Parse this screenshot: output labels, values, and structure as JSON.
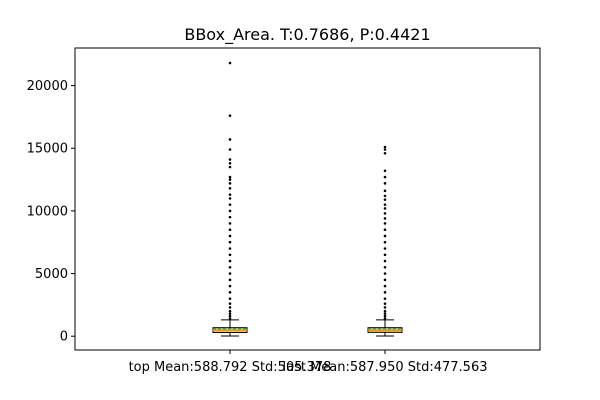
{
  "chart_data": {
    "type": "boxplot",
    "title": "BBox_Area. T:0.7686, P:0.4421",
    "xlabel": "",
    "ylabel": "",
    "ylim": [
      -1100,
      23000
    ],
    "yticks": [
      0,
      5000,
      10000,
      15000,
      20000
    ],
    "ytick_labels": [
      "0",
      "5000",
      "10000",
      "15000",
      "20000"
    ],
    "grid": false,
    "categories": [
      "top Mean:588.792 Std:505.378",
      "last Mean:587.950 Std:477.563"
    ],
    "boxes": [
      {
        "label": "top Mean:588.792 Std:505.378",
        "whisker_low": 20,
        "q1": 300,
        "median": 480,
        "mean": 588.792,
        "q3": 680,
        "whisker_high": 1300,
        "outliers": [
          1400,
          1600,
          1800,
          2000,
          2300,
          2600,
          3000,
          3500,
          4000,
          4500,
          5000,
          5500,
          6000,
          6500,
          7000,
          7500,
          8000,
          8500,
          9000,
          9500,
          10000,
          10500,
          11000,
          11300,
          11800,
          12200,
          12500,
          12700,
          13500,
          13800,
          14100,
          14900,
          15700,
          17600,
          21800
        ]
      },
      {
        "label": "last Mean:587.950 Std:477.563",
        "whisker_low": 20,
        "q1": 310,
        "median": 480,
        "mean": 587.95,
        "q3": 680,
        "whisker_high": 1300,
        "outliers": [
          1400,
          1600,
          1800,
          2000,
          2300,
          2600,
          3000,
          3500,
          4000,
          4500,
          5000,
          5500,
          6000,
          6500,
          7000,
          7500,
          8000,
          8500,
          9000,
          9400,
          9800,
          10200,
          10500,
          10900,
          11200,
          11600,
          12200,
          12700,
          13200,
          14600,
          14900,
          15100
        ]
      }
    ],
    "colors": {
      "box_fill": "#e8d77c",
      "box_edge": "#000000",
      "median_line": "#f28e2b",
      "mean_line": "#2ca02c",
      "outlier": "#000000"
    }
  }
}
